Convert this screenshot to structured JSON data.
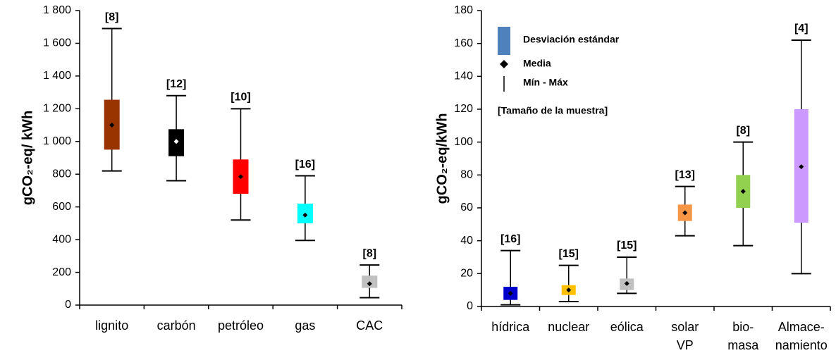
{
  "chart_data": [
    {
      "type": "box",
      "y_label": "gCO₂-eq/ kWh",
      "categories": [
        [
          "lignito"
        ],
        [
          "carbón"
        ],
        [
          "petróleo"
        ],
        [
          "gas"
        ],
        [
          "CAC"
        ]
      ],
      "min": [
        820,
        760,
        520,
        395,
        45
      ],
      "max": [
        1690,
        1280,
        1200,
        790,
        245
      ],
      "sd_low": [
        950,
        910,
        680,
        500,
        105
      ],
      "sd_high": [
        1255,
        1075,
        890,
        620,
        180
      ],
      "mean": [
        1100,
        1000,
        785,
        550,
        130
      ],
      "sample_labels": [
        "[8]",
        "[12]",
        "[10]",
        "[16]",
        "[8]"
      ],
      "colors": [
        "#993300",
        "#000000",
        "#ff0000",
        "#00ffff",
        "#c0c0c0"
      ],
      "ylim": [
        0,
        1800
      ],
      "yticks": [
        0,
        200,
        400,
        600,
        800,
        {
          "value": 1000,
          "label": "1 000"
        },
        {
          "value": 1200,
          "label": "1 200"
        },
        {
          "value": 1400,
          "label": "1 400"
        },
        {
          "value": 1600,
          "label": "1 600"
        },
        {
          "value": 1800,
          "label": "1 800"
        }
      ]
    },
    {
      "type": "box",
      "y_label": "gCO₂-eq/kWh",
      "categories": [
        [
          "hídrica"
        ],
        [
          "nuclear"
        ],
        [
          "eólica"
        ],
        [
          "solar",
          "VP"
        ],
        [
          "bio-",
          "masa"
        ],
        [
          "Almace-",
          "namiento"
        ]
      ],
      "min": [
        1,
        3,
        8,
        43,
        37,
        20
      ],
      "max": [
        34,
        25,
        30,
        73,
        100,
        162
      ],
      "sd_low": [
        4,
        7,
        10,
        52,
        60,
        51
      ],
      "sd_high": [
        12,
        13,
        17,
        62,
        80,
        120
      ],
      "mean": [
        8,
        10,
        14,
        57,
        70,
        85
      ],
      "sample_labels": [
        "[16]",
        "[15]",
        "[15]",
        "[13]",
        "[8]",
        "[4]"
      ],
      "colors": [
        "#0000cc",
        "#ffc000",
        "#c0c0c0",
        "#f79646",
        "#92d050",
        "#cc99ff"
      ],
      "ylim": [
        0,
        180
      ],
      "yticks": [
        0,
        20,
        40,
        60,
        80,
        100,
        120,
        140,
        160,
        180
      ],
      "legend": [
        "Desviación estándar",
        "Media",
        "Mín - Máx",
        "[Tamaño de la muestra]"
      ],
      "legend_color": "#4f81bd"
    }
  ]
}
